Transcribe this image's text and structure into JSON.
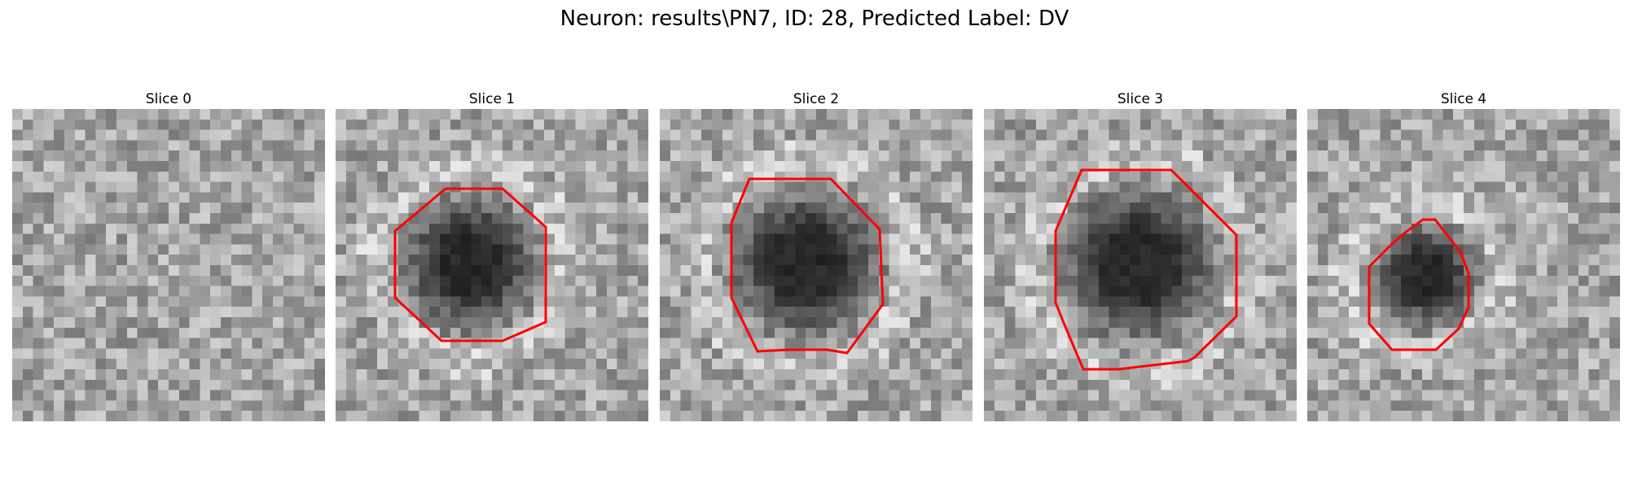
{
  "figure": {
    "title": "Neuron: results\\PN7, ID: 28, Predicted Label: DV",
    "outline_color": "#ff0000",
    "panels": [
      {
        "title": "Slice 0",
        "has_outline": false
      },
      {
        "title": "Slice 1",
        "has_outline": true
      },
      {
        "title": "Slice 2",
        "has_outline": true
      },
      {
        "title": "Slice 3",
        "has_outline": true
      },
      {
        "title": "Slice 4",
        "has_outline": true
      }
    ]
  }
}
